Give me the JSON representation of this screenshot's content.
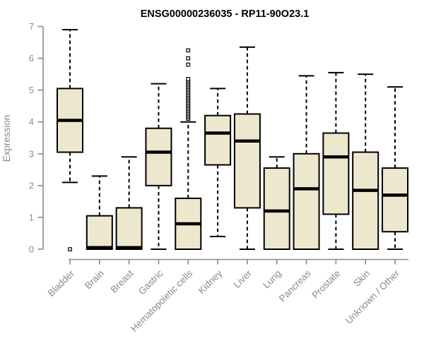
{
  "title": "ENSG00000236035 - RP11-90O23.1",
  "colors": {
    "box_fill": "#EDE8CD",
    "box_border": "#000000",
    "median": "#000000",
    "whisker": "#000000",
    "outlier_fill": "#ffffff",
    "axis": "#8a8a8a",
    "label": "#8a8a8a",
    "title": "#000000",
    "background": "#ffffff"
  },
  "chart_data": {
    "type": "boxplot",
    "title": "ENSG00000236035 - RP11-90O23.1",
    "xlabel": "",
    "ylabel": "Expression",
    "ylim": [
      0,
      7
    ],
    "yticks": [
      0,
      1,
      2,
      3,
      4,
      5,
      6,
      7
    ],
    "grid": false,
    "legend": false,
    "categories": [
      "Bladder",
      "Brain",
      "Breast",
      "Gastric",
      "Hematopoietic cells",
      "Kidney",
      "Liver",
      "Lung",
      "Pancreas",
      "Prostate",
      "Skin",
      "Unknown / Other"
    ],
    "boxes": [
      {
        "category": "Bladder",
        "whisker_low": 2.1,
        "q1": 3.05,
        "median": 4.05,
        "q3": 5.05,
        "whisker_high": 6.9,
        "outliers": [
          0
        ]
      },
      {
        "category": "Brain",
        "whisker_low": 0,
        "q1": 0,
        "median": 0.05,
        "q3": 1.05,
        "whisker_high": 2.3,
        "outliers": []
      },
      {
        "category": "Breast",
        "whisker_low": 0,
        "q1": 0,
        "median": 0.05,
        "q3": 1.3,
        "whisker_high": 2.9,
        "outliers": []
      },
      {
        "category": "Gastric",
        "whisker_low": 0,
        "q1": 2.0,
        "median": 3.05,
        "q3": 3.8,
        "whisker_high": 5.2,
        "outliers": []
      },
      {
        "category": "Hematopoietic cells",
        "whisker_low": 0,
        "q1": 0,
        "median": 0.8,
        "q3": 1.6,
        "whisker_high": 4.0,
        "outliers": [
          4.1,
          4.15,
          4.2,
          4.25,
          4.3,
          4.35,
          4.4,
          4.45,
          4.5,
          4.55,
          4.6,
          4.65,
          4.7,
          4.75,
          4.8,
          4.85,
          4.9,
          4.95,
          5.0,
          5.05,
          5.1,
          5.15,
          5.2,
          5.25,
          5.3,
          5.35,
          5.8,
          6.0,
          6.25
        ]
      },
      {
        "category": "Kidney",
        "whisker_low": 0.4,
        "q1": 2.65,
        "median": 3.65,
        "q3": 4.2,
        "whisker_high": 5.05,
        "outliers": []
      },
      {
        "category": "Liver",
        "whisker_low": 0,
        "q1": 1.3,
        "median": 3.4,
        "q3": 4.25,
        "whisker_high": 6.35,
        "outliers": []
      },
      {
        "category": "Lung",
        "whisker_low": 0,
        "q1": 0,
        "median": 1.2,
        "q3": 2.55,
        "whisker_high": 2.9,
        "outliers": []
      },
      {
        "category": "Pancreas",
        "whisker_low": 0,
        "q1": 0,
        "median": 1.9,
        "q3": 3.0,
        "whisker_high": 5.45,
        "outliers": []
      },
      {
        "category": "Prostate",
        "whisker_low": 0,
        "q1": 1.1,
        "median": 2.9,
        "q3": 3.65,
        "whisker_high": 5.55,
        "outliers": []
      },
      {
        "category": "Skin",
        "whisker_low": 0,
        "q1": 0,
        "median": 1.85,
        "q3": 3.05,
        "whisker_high": 5.5,
        "outliers": []
      },
      {
        "category": "Unknown / Other",
        "whisker_low": 0,
        "q1": 0.55,
        "median": 1.7,
        "q3": 2.55,
        "whisker_high": 5.1,
        "outliers": []
      }
    ]
  }
}
